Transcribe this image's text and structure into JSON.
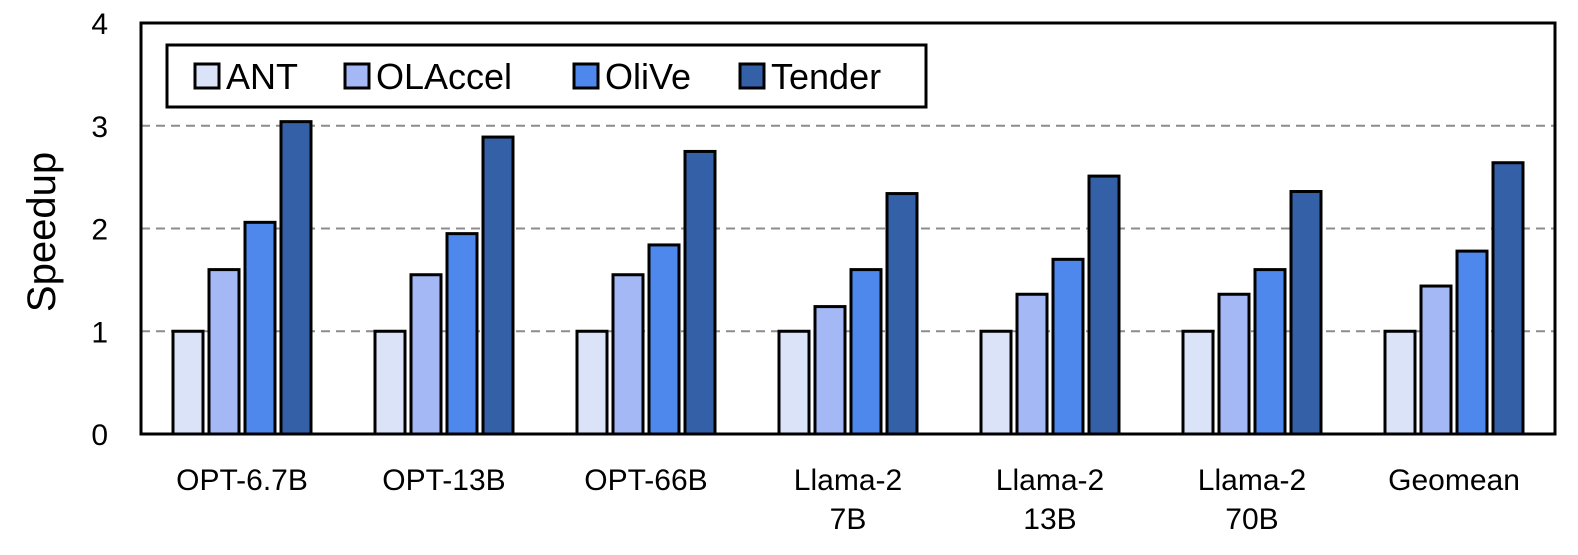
{
  "chart_data": {
    "type": "bar",
    "title": "",
    "xlabel": "",
    "ylabel": "Speedup",
    "ylim": [
      0,
      4
    ],
    "yticks": [
      "0",
      "1",
      "2",
      "3",
      "4"
    ],
    "grid": "horizontal dashed at 1, 2, 3",
    "legend_position": "top-left",
    "categories": [
      [
        "OPT-6.7B"
      ],
      [
        "OPT-13B"
      ],
      [
        "OPT-66B"
      ],
      [
        "Llama-2",
        "7B"
      ],
      [
        "Llama-2",
        "13B"
      ],
      [
        "Llama-2",
        "70B"
      ],
      [
        "Geomean"
      ]
    ],
    "series": [
      {
        "name": "ANT",
        "color": "#dae3f8",
        "values": [
          1.0,
          1.0,
          1.0,
          1.0,
          1.0,
          1.0,
          1.0
        ]
      },
      {
        "name": "OLAccel",
        "color": "#a3b8f5",
        "values": [
          1.6,
          1.55,
          1.55,
          1.24,
          1.36,
          1.36,
          1.44
        ]
      },
      {
        "name": "OliVe",
        "color": "#4e88ec",
        "values": [
          2.06,
          1.95,
          1.84,
          1.6,
          1.7,
          1.6,
          1.78
        ]
      },
      {
        "name": "Tender",
        "color": "#3460a8",
        "values": [
          3.04,
          2.89,
          2.75,
          2.34,
          2.51,
          2.36,
          2.64
        ]
      }
    ]
  }
}
